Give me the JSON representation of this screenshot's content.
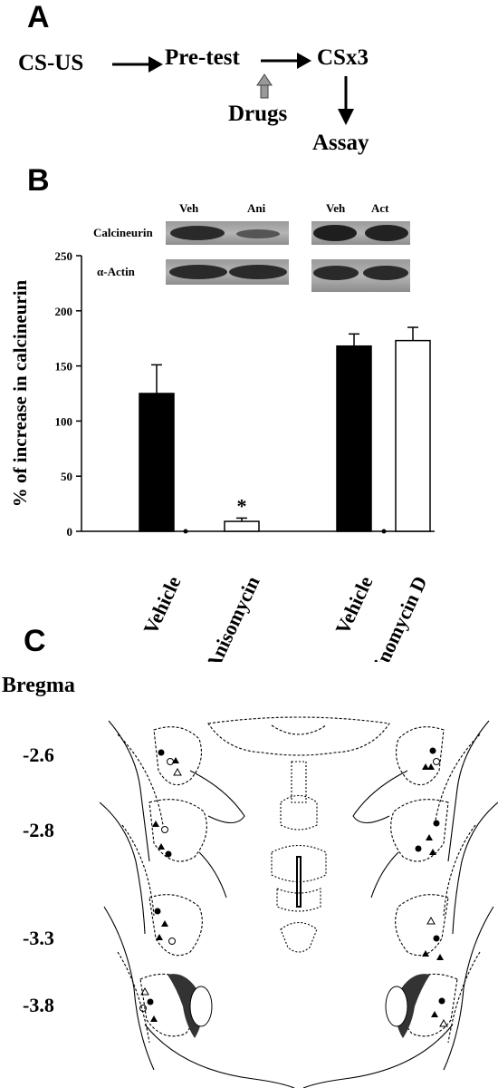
{
  "panel_a": {
    "letter": "A",
    "steps": [
      "CS-US",
      "Pre-test",
      "CSx3"
    ],
    "drugs_label": "Drugs",
    "assay_label": "Assay"
  },
  "panel_b": {
    "letter": "B",
    "blot_lanes": [
      "Veh",
      "Ani",
      "Veh",
      "Act"
    ],
    "blot_rows": [
      "Calcineurin",
      "α-Actin"
    ]
  },
  "panel_c": {
    "letter": "C",
    "bregma_label": "Bregma",
    "levels": [
      "-2.6",
      "-2.8",
      "-3.3",
      "-3.8"
    ]
  },
  "chart_data": {
    "type": "bar",
    "ylabel": "% of increase in calcineurin",
    "ylim": [
      0,
      250
    ],
    "yticks": [
      0,
      50,
      100,
      150,
      200,
      250
    ],
    "categories": [
      "Vehicle",
      "Anisomycin",
      "Vehicle",
      "Actinomycin D"
    ],
    "values": [
      125,
      9,
      168,
      173
    ],
    "errors": [
      26,
      3,
      11,
      12
    ],
    "fills": [
      "#000000",
      "#ffffff",
      "#000000",
      "#ffffff"
    ],
    "annotations": [
      {
        "category_index": 1,
        "text": "*"
      }
    ]
  }
}
